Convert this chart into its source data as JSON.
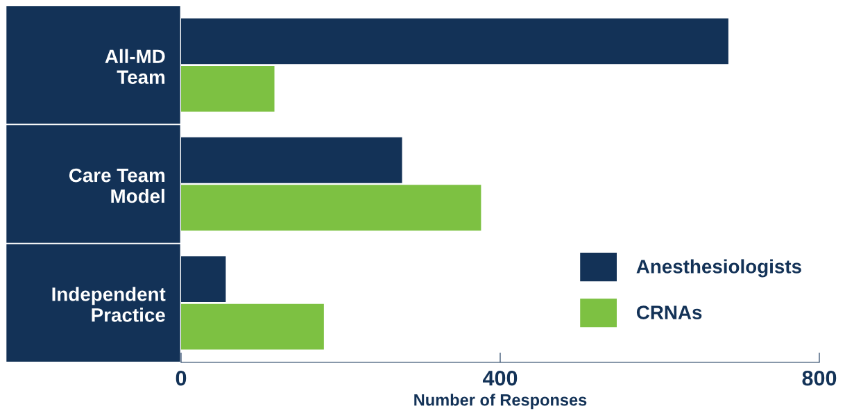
{
  "chart_data": {
    "type": "bar",
    "orientation": "horizontal",
    "categories": [
      "All-MD\nTeam",
      "Care Team\nModel",
      "Independent\nPractice"
    ],
    "series": [
      {
        "name": "Anesthesiologists",
        "color": "#133257",
        "values": [
          686,
          277,
          56
        ]
      },
      {
        "name": "CRNAs",
        "color": "#7dc142",
        "values": [
          117,
          376,
          179
        ]
      }
    ],
    "xlim": [
      0,
      800
    ],
    "xticks": [
      0,
      400,
      800
    ],
    "xlabel": "Number of Responses",
    "legend": "bottom right"
  }
}
